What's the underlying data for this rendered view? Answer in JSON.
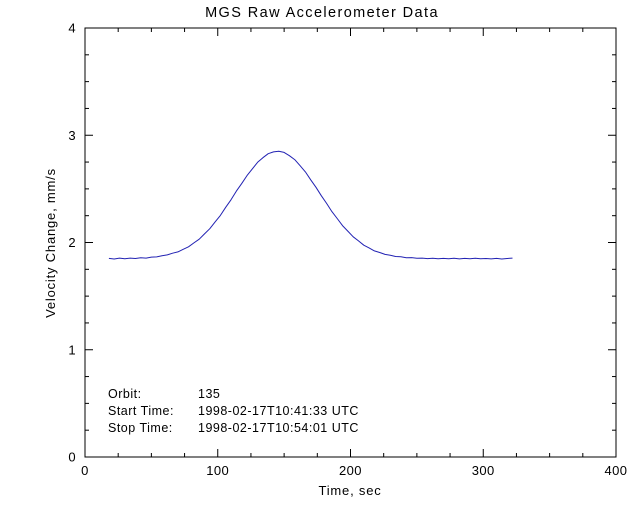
{
  "chart_data": {
    "type": "line",
    "title": "MGS Raw Accelerometer Data",
    "xlabel": "Time, sec",
    "ylabel": "Velocity Change, mm/s",
    "xlim": [
      0,
      400
    ],
    "ylim": [
      0,
      4
    ],
    "xticks": [
      0,
      100,
      200,
      300,
      400
    ],
    "yticks": [
      0,
      1,
      2,
      3,
      4
    ],
    "x_minor_step": 25,
    "y_minor_step": 0.25,
    "grid": false,
    "legend": "none",
    "background": "#FFFFFF",
    "axis_color": "#000000",
    "line_color": "#2222B3",
    "series": [
      {
        "name": "velocity-change",
        "x": [
          18,
          22,
          26,
          30,
          34,
          38,
          42,
          46,
          50,
          54,
          58,
          62,
          66,
          70,
          74,
          78,
          82,
          86,
          90,
          94,
          98,
          102,
          106,
          110,
          114,
          118,
          122,
          126,
          130,
          134,
          138,
          142,
          146,
          150,
          154,
          158,
          162,
          166,
          170,
          174,
          178,
          182,
          186,
          190,
          194,
          198,
          202,
          206,
          210,
          214,
          218,
          222,
          226,
          230,
          234,
          238,
          242,
          246,
          250,
          254,
          258,
          262,
          266,
          270,
          274,
          278,
          282,
          286,
          290,
          294,
          298,
          302,
          306,
          310,
          314,
          318,
          322
        ],
        "y": [
          1.852,
          1.846,
          1.855,
          1.848,
          1.855,
          1.851,
          1.858,
          1.855,
          1.864,
          1.866,
          1.877,
          1.884,
          1.9,
          1.912,
          1.937,
          1.96,
          1.996,
          2.031,
          2.08,
          2.129,
          2.192,
          2.253,
          2.328,
          2.398,
          2.478,
          2.548,
          2.624,
          2.686,
          2.748,
          2.791,
          2.828,
          2.845,
          2.85,
          2.84,
          2.809,
          2.773,
          2.716,
          2.658,
          2.585,
          2.515,
          2.436,
          2.365,
          2.288,
          2.224,
          2.158,
          2.106,
          2.053,
          2.015,
          1.975,
          1.95,
          1.922,
          1.907,
          1.889,
          1.881,
          1.869,
          1.867,
          1.858,
          1.859,
          1.853,
          1.855,
          1.85,
          1.853,
          1.849,
          1.852,
          1.848,
          1.853,
          1.847,
          1.852,
          1.848,
          1.853,
          1.849,
          1.851,
          1.847,
          1.852,
          1.846,
          1.851,
          1.855
        ]
      }
    ],
    "annotations": [
      {
        "label": "Orbit:",
        "value": "135"
      },
      {
        "label": "Start Time:",
        "value": "1998-02-17T10:41:33 UTC"
      },
      {
        "label": "Stop Time:",
        "value": "1998-02-17T10:54:01 UTC"
      }
    ]
  }
}
